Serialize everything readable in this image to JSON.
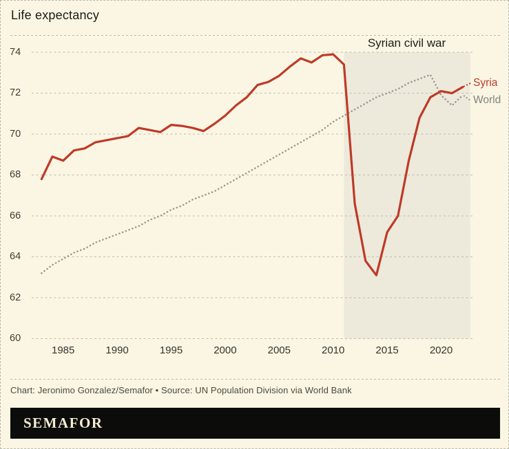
{
  "header": {
    "title": "Life expectancy"
  },
  "annotation": {
    "label": "Syrian civil war"
  },
  "series_labels": {
    "syria": "Syria",
    "world": "World"
  },
  "footer": {
    "caption": "Chart: Jeronimo Gonzalez/Semafor • Source: UN Population Division via World Bank",
    "brand": "SEMAFOR"
  },
  "colors": {
    "background": "#FAF6E3",
    "shade": "#EDEADB",
    "grid": "#BCBCB2",
    "syria": "#BE3A28",
    "world": "#9C9A94",
    "footer_bg": "#0C0C0A",
    "brand_text": "#F4EDD3"
  },
  "chart_data": {
    "type": "line",
    "title": "Life expectancy",
    "x": [
      1983,
      1984,
      1985,
      1986,
      1987,
      1988,
      1989,
      1990,
      1991,
      1992,
      1993,
      1994,
      1995,
      1996,
      1997,
      1998,
      1999,
      2000,
      2001,
      2002,
      2003,
      2004,
      2005,
      2006,
      2007,
      2008,
      2009,
      2010,
      2011,
      2012,
      2013,
      2014,
      2015,
      2016,
      2017,
      2018,
      2019,
      2020,
      2021,
      2022
    ],
    "series": [
      {
        "name": "Syria",
        "color": "#BE3A28",
        "style": "solid",
        "values": [
          67.8,
          68.9,
          68.7,
          69.2,
          69.3,
          69.6,
          69.7,
          69.8,
          69.9,
          70.3,
          70.2,
          70.1,
          70.45,
          70.4,
          70.3,
          70.15,
          70.5,
          70.9,
          71.4,
          71.8,
          72.4,
          72.55,
          72.85,
          73.3,
          73.7,
          73.5,
          73.85,
          73.9,
          73.4,
          66.6,
          63.8,
          63.1,
          65.2,
          66.0,
          68.7,
          70.8,
          71.8,
          72.1,
          72.0,
          72.3
        ]
      },
      {
        "name": "World",
        "color": "#9C9A94",
        "style": "dotted",
        "values": [
          63.2,
          63.6,
          63.9,
          64.2,
          64.4,
          64.7,
          64.9,
          65.1,
          65.3,
          65.5,
          65.8,
          66.0,
          66.3,
          66.5,
          66.8,
          67.0,
          67.2,
          67.5,
          67.8,
          68.1,
          68.4,
          68.7,
          69.0,
          69.3,
          69.6,
          69.9,
          70.2,
          70.6,
          70.9,
          71.2,
          71.5,
          71.8,
          72.0,
          72.2,
          72.5,
          72.7,
          72.9,
          71.9,
          71.4,
          71.9
        ]
      }
    ],
    "ylim": [
      60,
      74
    ],
    "y_ticks": [
      74,
      72,
      70,
      68,
      66,
      64,
      62,
      60
    ],
    "x_ticks": [
      1985,
      1990,
      1995,
      2000,
      2005,
      2010,
      2015,
      2020
    ],
    "grid": true,
    "legend": "inline-right",
    "shaded_region": {
      "label": "Syrian civil war",
      "x_start": 2011,
      "x_end": 2022.7
    }
  }
}
